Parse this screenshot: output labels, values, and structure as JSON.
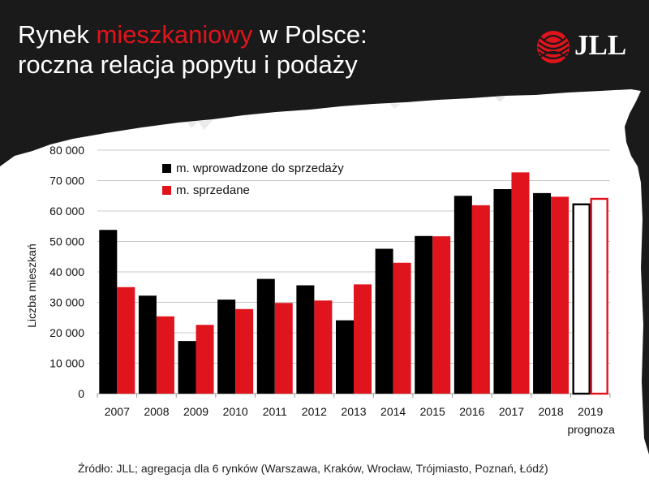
{
  "header": {
    "title_part1": "Rynek ",
    "title_highlight": "mieszkaniowy",
    "title_part2": " w Polsce:",
    "title_line2": "roczna relacja popytu i podaży",
    "logo_text": "JLL"
  },
  "footer": {
    "source": "Źródło: JLL; agregacja dla 6 rynków (Warszawa, Kraków, Wrocław, Trójmiasto, Poznań, Łódź)"
  },
  "colors": {
    "background": "#1a1a1a",
    "paper": "#ffffff",
    "accent_red": "#e0141c",
    "series_black": "#000000"
  },
  "chart_data": {
    "type": "bar",
    "title": "",
    "xlabel": "",
    "ylabel": "Liczba mieszkań",
    "ylim": [
      0,
      80000
    ],
    "yticks": [
      0,
      10000,
      20000,
      30000,
      40000,
      50000,
      60000,
      70000,
      80000
    ],
    "ytick_labels": [
      "0",
      "10 000",
      "20 000",
      "30 000",
      "40 000",
      "50 000",
      "60 000",
      "70 000",
      "80 000"
    ],
    "grid": true,
    "legend_position": "top-left",
    "categories": [
      "2007",
      "2008",
      "2009",
      "2010",
      "2011",
      "2012",
      "2013",
      "2014",
      "2015",
      "2016",
      "2017",
      "2018",
      "2019"
    ],
    "category_note": {
      "2019": "prognoza"
    },
    "forecast_categories": [
      "2019"
    ],
    "series": [
      {
        "name": "m. wprowadzone do sprzedaży",
        "color": "#000000",
        "values": [
          53800,
          32200,
          17300,
          30900,
          37700,
          35600,
          24100,
          47600,
          51800,
          65000,
          67200,
          65900,
          62200
        ]
      },
      {
        "name": "m. sprzedane",
        "color": "#e0141c",
        "values": [
          35000,
          25400,
          22600,
          27800,
          29800,
          30600,
          35900,
          43000,
          51700,
          61900,
          72700,
          64700,
          64000
        ]
      }
    ]
  }
}
